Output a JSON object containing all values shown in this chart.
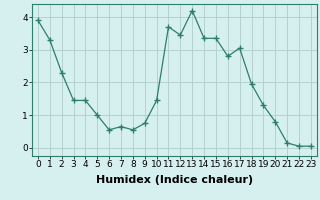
{
  "x": [
    0,
    1,
    2,
    3,
    4,
    5,
    6,
    7,
    8,
    9,
    10,
    11,
    12,
    13,
    14,
    15,
    16,
    17,
    18,
    19,
    20,
    21,
    22,
    23
  ],
  "y": [
    3.9,
    3.3,
    2.3,
    1.45,
    1.45,
    1.0,
    0.55,
    0.65,
    0.55,
    0.75,
    1.45,
    3.7,
    3.45,
    4.2,
    3.35,
    3.35,
    2.8,
    3.05,
    1.95,
    1.3,
    0.8,
    0.15,
    0.05,
    0.05
  ],
  "line_color": "#2e7d6e",
  "marker": "+",
  "marker_size": 4,
  "bg_color": "#d6f0f0",
  "grid_color_major": "#b0cccc",
  "grid_color_minor": "#c8e4e4",
  "xlabel": "Humidex (Indice chaleur)",
  "xlabel_fontsize": 8,
  "tick_fontsize": 6.5,
  "ylim": [
    -0.25,
    4.4
  ],
  "xlim": [
    -0.5,
    23.5
  ],
  "yticks": [
    0,
    1,
    2,
    3,
    4
  ],
  "xticks": [
    0,
    1,
    2,
    3,
    4,
    5,
    6,
    7,
    8,
    9,
    10,
    11,
    12,
    13,
    14,
    15,
    16,
    17,
    18,
    19,
    20,
    21,
    22,
    23
  ]
}
